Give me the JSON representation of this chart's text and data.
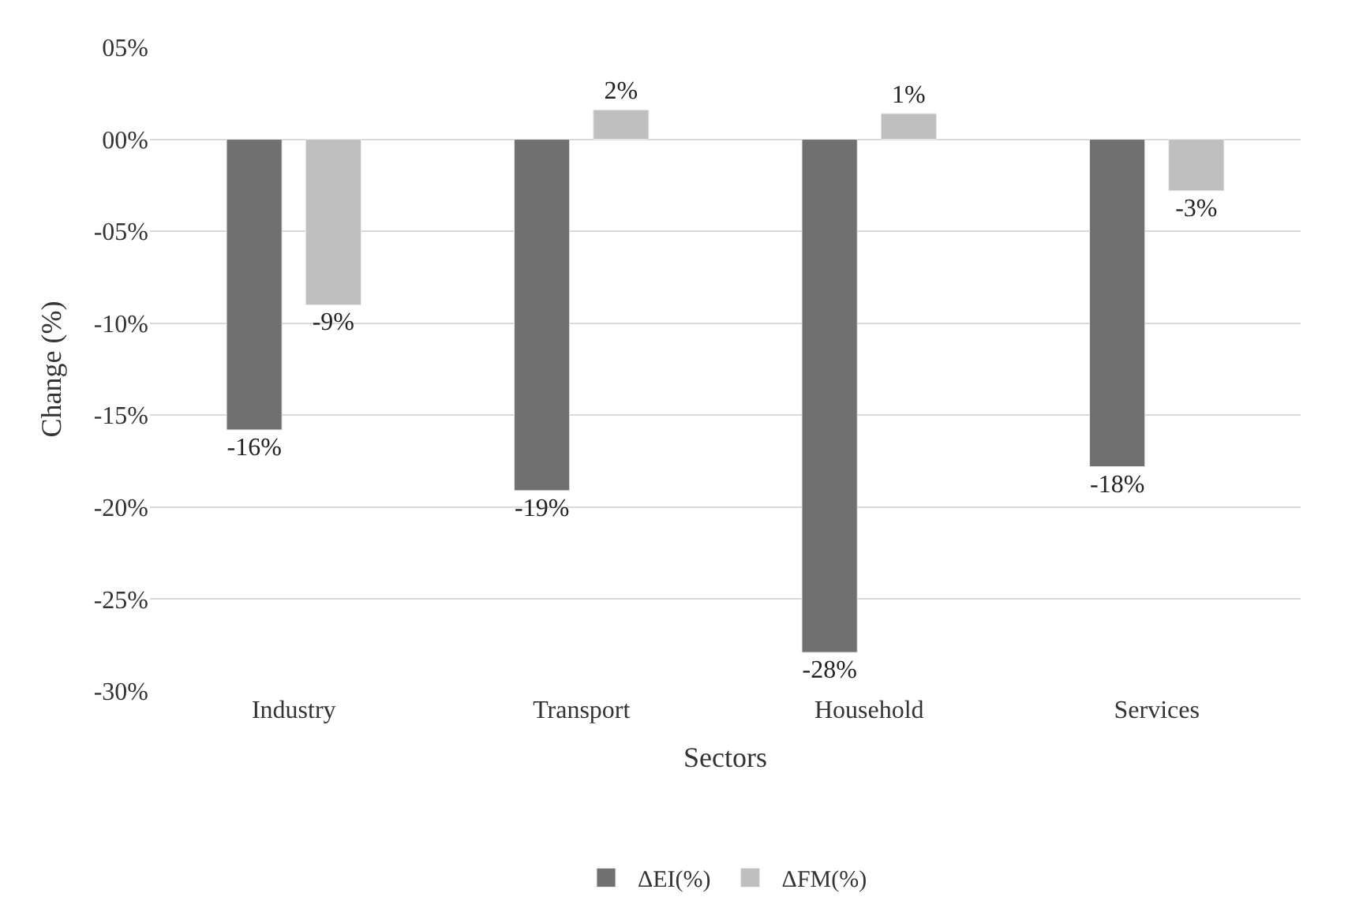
{
  "chart_data": {
    "type": "bar",
    "xlabel": "Sectors",
    "ylabel": "Change (%)",
    "categories": [
      "Industry",
      "Transport",
      "Household",
      "Services"
    ],
    "series": [
      {
        "name": "ΔEI(%)",
        "color": "#707070",
        "values": [
          -15.8,
          -19.1,
          -27.9,
          -17.8
        ],
        "value_labels": [
          "-16%",
          "-19%",
          "-28%",
          "-18%"
        ]
      },
      {
        "name": "ΔFM(%)",
        "color": "#bfbfbf",
        "values": [
          -9.0,
          1.6,
          1.4,
          -2.8
        ],
        "value_labels": [
          "-9%",
          "2%",
          "1%",
          "-3%"
        ]
      }
    ],
    "ylim": [
      -30,
      5
    ],
    "yticks": [
      {
        "value": 5,
        "label": "05%"
      },
      {
        "value": 0,
        "label": "00%"
      },
      {
        "value": -5,
        "label": "-05%"
      },
      {
        "value": -10,
        "label": "-10%"
      },
      {
        "value": -15,
        "label": "-15%"
      },
      {
        "value": -20,
        "label": "-20%"
      },
      {
        "value": -25,
        "label": "-25%"
      },
      {
        "value": -30,
        "label": "-30%"
      }
    ],
    "grid": "y",
    "legend": "bottom"
  }
}
